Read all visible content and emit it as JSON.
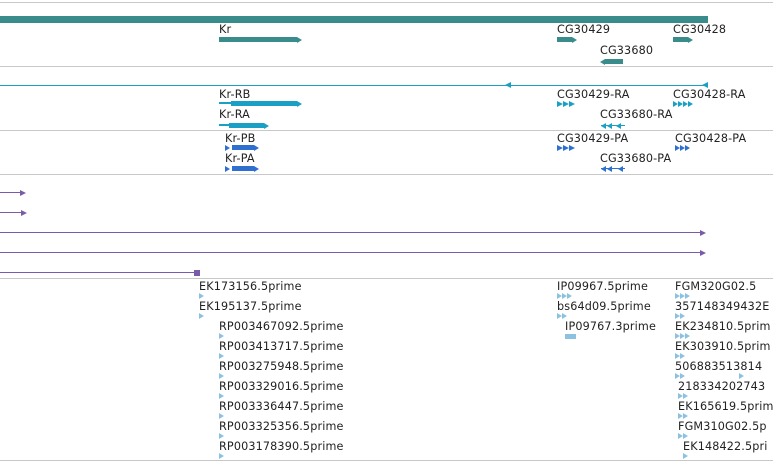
{
  "colors": {
    "gene": "#3a8c8c",
    "mrna": "#1aa0c4",
    "protein": "#2f6fd0",
    "alignment": "#7a5aaa",
    "est": "#8cc2e0",
    "divider": "#c8c8c8"
  },
  "genes": {
    "kr": "Kr",
    "cg30429": "CG30429",
    "cg30428": "CG30428",
    "cg33680": "CG33680"
  },
  "mrna": {
    "kr_rb": "Kr-RB",
    "kr_ra": "Kr-RA",
    "cg30429_ra": "CG30429-RA",
    "cg30428_ra": "CG30428-RA",
    "cg33680_ra": "CG33680-RA"
  },
  "proteins": {
    "kr_pb": "Kr-PB",
    "kr_pa": "Kr-PA",
    "cg30429_pa": "CG30429-PA",
    "cg30428_pa": "CG30428-PA",
    "cg33680_pa": "CG33680-PA"
  },
  "ests": {
    "col1": [
      "EK173156.5prime",
      "EK195137.5prime"
    ],
    "col2": [
      "RP003467092.5prime",
      "RP003413717.5prime",
      "RP003275948.5prime",
      "RP003329016.5prime",
      "RP003336447.5prime",
      "RP003325356.5prime",
      "RP003178390.5prime"
    ],
    "col3": [
      "IP09967.5prime",
      "bs64d09.5prime",
      "IP09767.3prime"
    ],
    "col4": [
      "FGM320G02.5",
      "357148349432E",
      "EK234810.5prim",
      "EK303910.5prim",
      "506883513814",
      "218334202743",
      "EK165619.5prim",
      "FGM310G02.5p",
      "EK148422.5pri"
    ]
  }
}
